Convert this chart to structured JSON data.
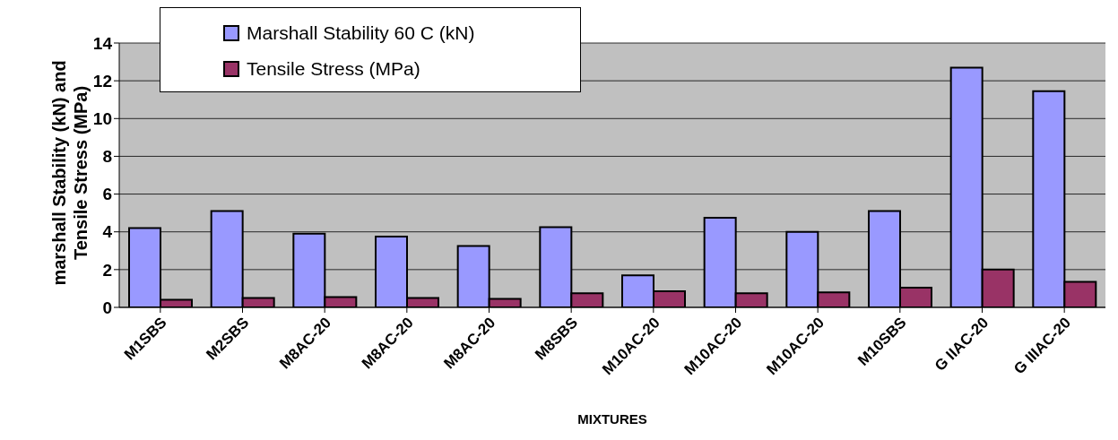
{
  "chart_data": {
    "type": "bar",
    "xlabel": "MIXTURES",
    "ylabel": "marshall Stability (kN) and Tensile Stress (MPa)",
    "categories": [
      "M1SBS",
      "M2SBS",
      "M8AC-20",
      "M8AC-20",
      "M8AC-20",
      "M8SBS",
      "M10AC-20",
      "M10AC-20",
      "M10AC-20",
      "M10SBS",
      "G IIAC-20",
      "G IIIAC-20"
    ],
    "series": [
      {
        "name": "Marshall Stability 60 C (kN)",
        "color": "#9999ff",
        "values": [
          4.2,
          5.1,
          3.9,
          3.75,
          3.25,
          4.25,
          1.7,
          4.75,
          4.0,
          5.1,
          12.7,
          11.45
        ]
      },
      {
        "name": "Tensile Stress (MPa)",
        "color": "#993366",
        "values": [
          0.4,
          0.5,
          0.55,
          0.5,
          0.45,
          0.75,
          0.85,
          0.75,
          0.8,
          1.05,
          2.0,
          1.35
        ]
      }
    ],
    "ylim": [
      0,
      14
    ],
    "yticks": [
      0,
      2,
      4,
      6,
      8,
      10,
      12,
      14
    ],
    "grid": "y",
    "legend": "top left"
  }
}
